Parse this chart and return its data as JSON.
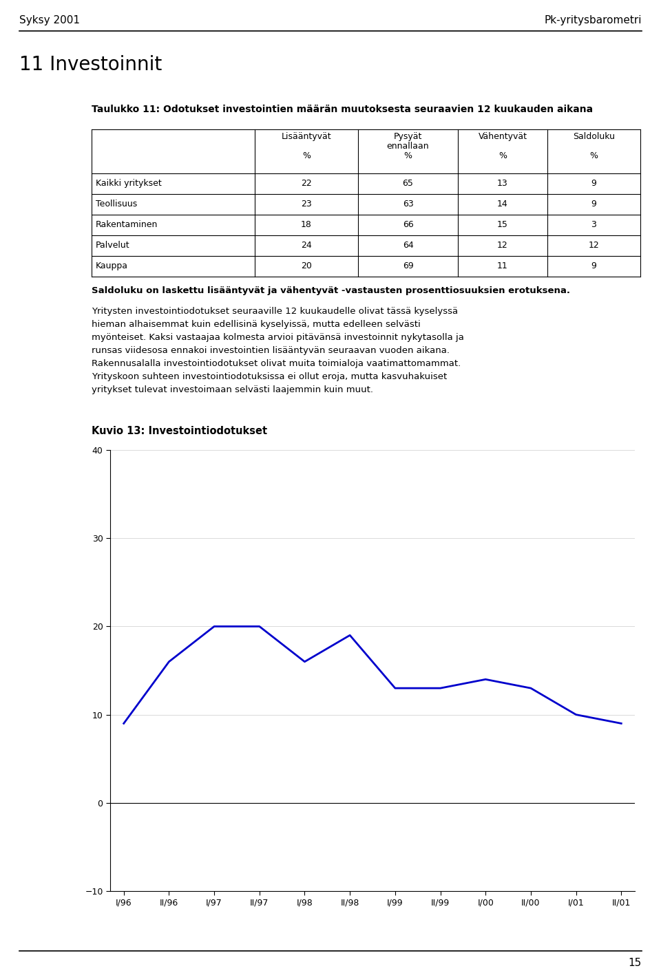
{
  "page_header_left": "Syksy 2001",
  "page_header_right": "Pk-yritysbarometri",
  "section_title": "11 Investoinnit",
  "table_title": "Taulukko 11: Odotukset investointien määrän muutoksesta seuraavien 12 kuukauden aikana",
  "table_col_headers": [
    "Lisääntyvät",
    "Pysyät\nennallaan",
    "Vähentyvät",
    "Saldoluku"
  ],
  "table_rows": [
    [
      "Kaikki yritykset",
      "22",
      "65",
      "13",
      "9"
    ],
    [
      "Teollisuus",
      "23",
      "63",
      "14",
      "9"
    ],
    [
      "Rakentaminen",
      "18",
      "66",
      "15",
      "3"
    ],
    [
      "Palvelut",
      "24",
      "64",
      "12",
      "12"
    ],
    [
      "Kauppa",
      "20",
      "69",
      "11",
      "9"
    ]
  ],
  "bold_note": "Saldoluku on laskettu lisääntyvät ja vähentyvät -vastausten prosenttiosuuksien erotuksena.",
  "body_lines": [
    "Yritysten investointiodotukset seuraaville 12 kuukaudelle olivat tässä kyselyssä",
    "hieman alhaisemmat kuin edellisinä kyselyissä, mutta edelleen selvästi",
    "myönteiset. Kaksi vastaajaa kolmesta arvioi pitävänsä investoinnit nykytasolla ja",
    "runsas viidesosa ennakoi investointien lisääntyvän seuraavan vuoden aikana.",
    "Rakennusalalla investointiodotukset olivat muita toimialoja vaatimattomammat.",
    "Yrityskoon suhteen investointiodotuksissa ei ollut eroja, mutta kasvuhakuiset",
    "yritykset tulevat investoimaan selvästi laajemmin kuin muut."
  ],
  "chart_title": "Kuvio 13: Investointiodotukset",
  "x_labels": [
    "I/96",
    "II/96",
    "I/97",
    "II/97",
    "I/98",
    "II/98",
    "I/99",
    "II/99",
    "I/00",
    "II/00",
    "I/01",
    "II/01"
  ],
  "y_values": [
    9,
    16,
    20,
    20,
    16,
    19,
    13,
    13,
    14,
    13,
    10,
    9
  ],
  "y_min": -10,
  "y_max": 40,
  "y_ticks": [
    -10,
    0,
    10,
    20,
    30,
    40
  ],
  "line_color": "#0000cc",
  "page_number": "15",
  "background_color": "#ffffff"
}
